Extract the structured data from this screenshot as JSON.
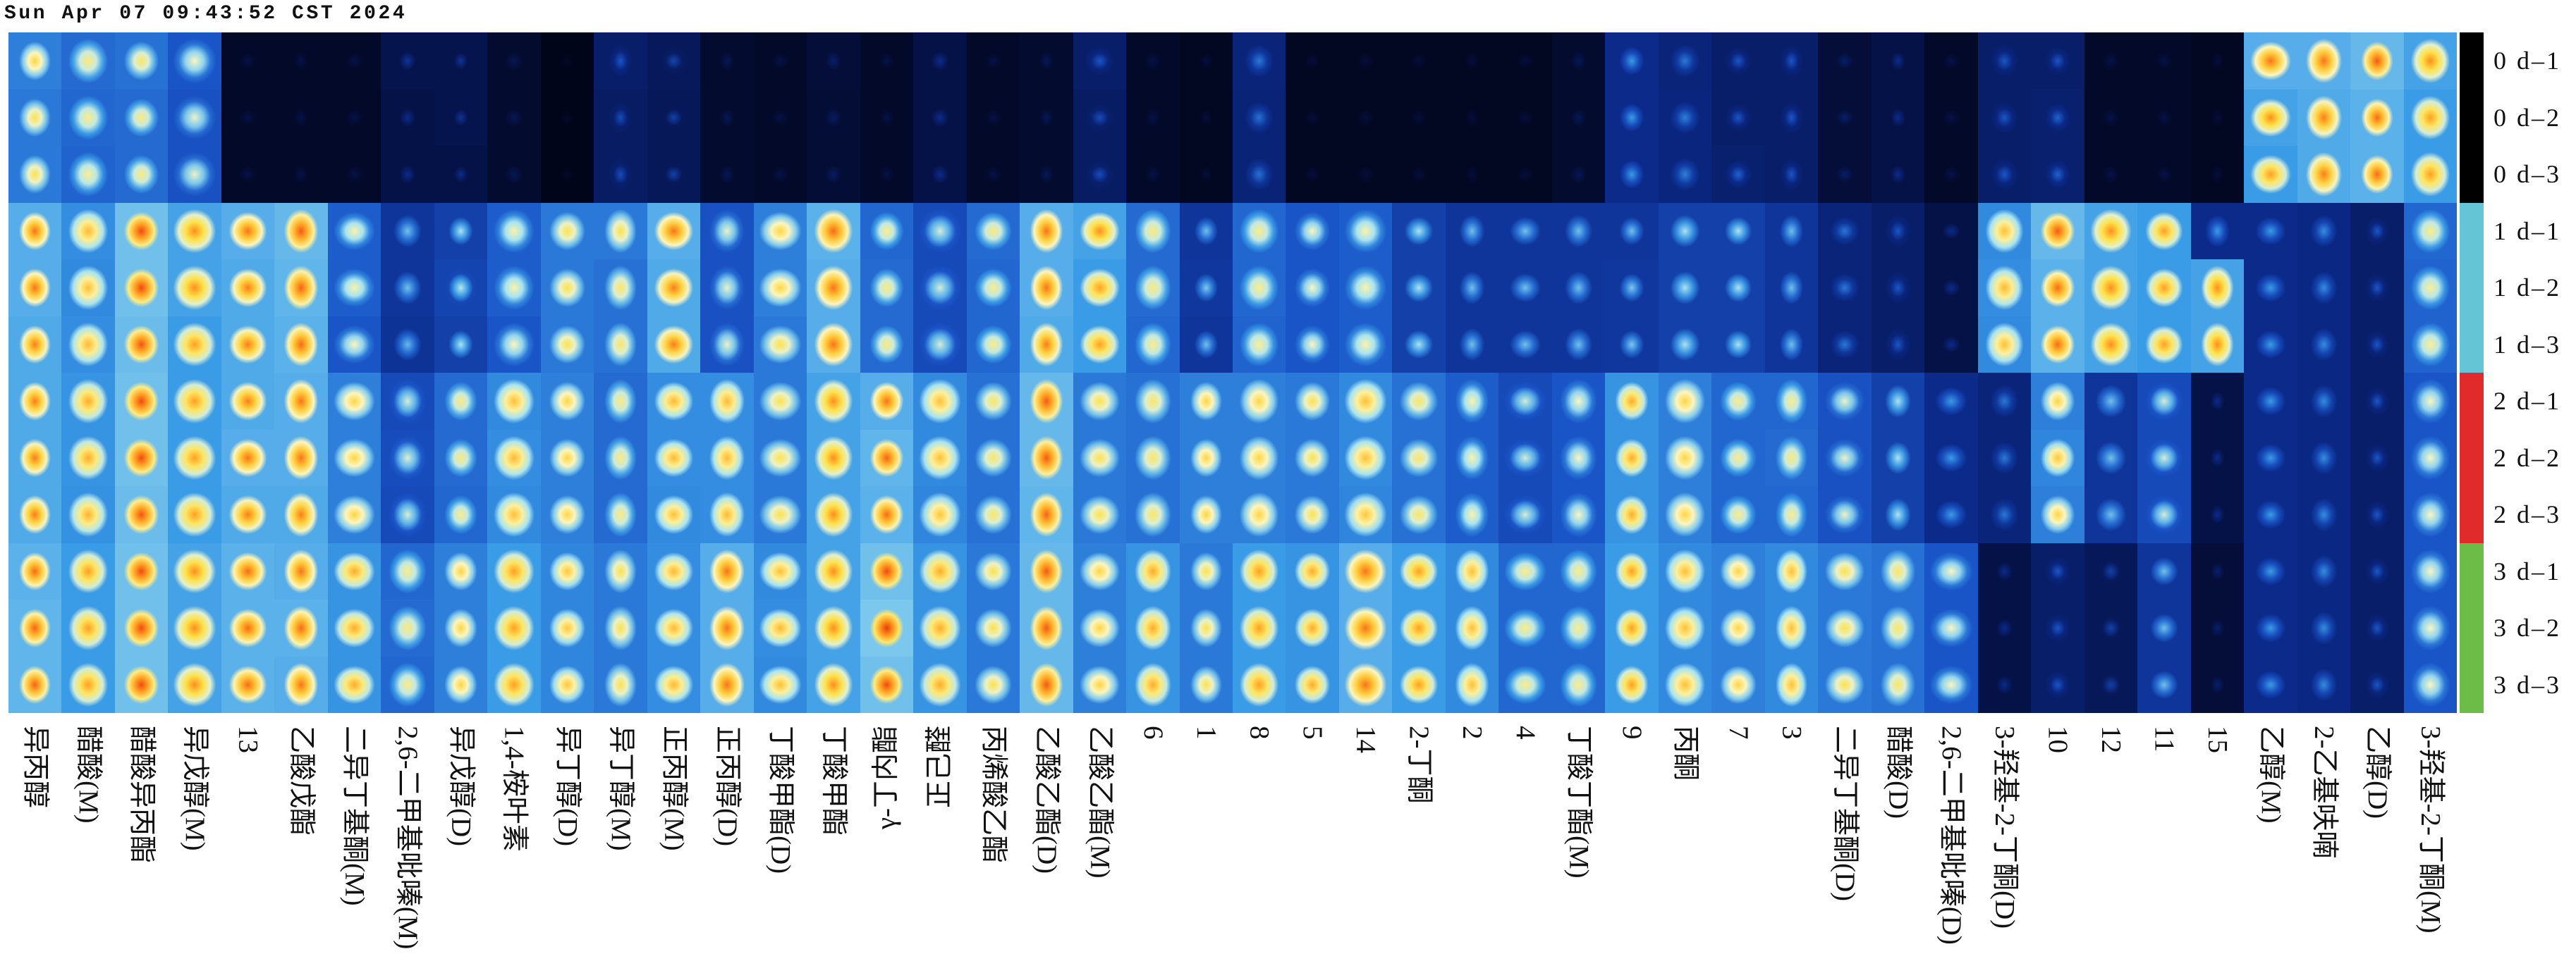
{
  "timestamp": "Sun Apr 07 09:43:52 CST 2024",
  "chart_data": {
    "type": "heatmap",
    "rows": [
      "0 d–1",
      "0 d–2",
      "0 d–3",
      "1 d–1",
      "1 d–2",
      "1 d–3",
      "2 d–1",
      "2 d–2",
      "2 d–3",
      "3 d–1",
      "3 d–2",
      "3 d–3"
    ],
    "columns": [
      "异丙醇",
      "醋酸(M)",
      "醋酸异丙酯",
      "异戊醇(M)",
      "13",
      "乙酸戊酯",
      "二异丁基酮(M)",
      "2,6-二甲基吡嗪(M)",
      "异戊醇(D)",
      "1,4-桉叶素",
      "异丁醇(D)",
      "异丁醇(M)",
      "正丙醇(M)",
      "正丙醇(D)",
      "丁酸甲酯(D)",
      "丁酸甲酯",
      "γ-丁内酯",
      "正己醛",
      "丙烯酸乙酯",
      "乙酸乙酯(D)",
      "乙酸乙酯(M)",
      "6",
      "1",
      "8",
      "5",
      "14",
      "2-丁酮",
      "2",
      "4",
      "丁酸丁酯(M)",
      "9",
      "丙酮",
      "7",
      "3",
      "二异丁基酮(D)",
      "醋酸(D)",
      "2,6-二甲基吡嗪(D)",
      "3-羟基-2-丁酮(D)",
      "10",
      "12",
      "11",
      "15",
      "乙醇(M)",
      "2-乙基呋喃",
      "乙醇(D)",
      "3-羟基-2-丁酮(M)"
    ],
    "values": [
      [
        0.72,
        0.66,
        0.68,
        0.6,
        0.1,
        0.1,
        0.1,
        0.22,
        0.22,
        0.12,
        0.05,
        0.3,
        0.26,
        0.12,
        0.1,
        0.15,
        0.1,
        0.2,
        0.1,
        0.12,
        0.3,
        0.1,
        0.08,
        0.35,
        0.08,
        0.08,
        0.08,
        0.08,
        0.08,
        0.12,
        0.4,
        0.35,
        0.3,
        0.3,
        0.15,
        0.2,
        0.1,
        0.3,
        0.3,
        0.1,
        0.1,
        0.08,
        0.85,
        0.85,
        0.88,
        0.82
      ],
      [
        0.7,
        0.65,
        0.66,
        0.58,
        0.1,
        0.1,
        0.1,
        0.2,
        0.22,
        0.12,
        0.05,
        0.28,
        0.25,
        0.12,
        0.1,
        0.14,
        0.1,
        0.2,
        0.1,
        0.12,
        0.28,
        0.1,
        0.08,
        0.34,
        0.08,
        0.08,
        0.08,
        0.08,
        0.08,
        0.12,
        0.4,
        0.36,
        0.3,
        0.3,
        0.15,
        0.2,
        0.1,
        0.3,
        0.32,
        0.1,
        0.1,
        0.08,
        0.82,
        0.84,
        0.86,
        0.8
      ],
      [
        0.7,
        0.64,
        0.66,
        0.58,
        0.1,
        0.1,
        0.1,
        0.2,
        0.2,
        0.12,
        0.05,
        0.28,
        0.25,
        0.12,
        0.1,
        0.14,
        0.1,
        0.2,
        0.1,
        0.12,
        0.28,
        0.1,
        0.08,
        0.34,
        0.08,
        0.08,
        0.08,
        0.08,
        0.08,
        0.12,
        0.4,
        0.36,
        0.32,
        0.3,
        0.15,
        0.2,
        0.1,
        0.3,
        0.32,
        0.1,
        0.1,
        0.08,
        0.8,
        0.84,
        0.86,
        0.8
      ],
      [
        0.85,
        0.76,
        0.9,
        0.82,
        0.85,
        0.88,
        0.62,
        0.45,
        0.5,
        0.62,
        0.7,
        0.7,
        0.85,
        0.58,
        0.72,
        0.86,
        0.65,
        0.55,
        0.66,
        0.85,
        0.82,
        0.66,
        0.45,
        0.65,
        0.6,
        0.62,
        0.5,
        0.45,
        0.45,
        0.45,
        0.45,
        0.5,
        0.5,
        0.45,
        0.35,
        0.3,
        0.2,
        0.75,
        0.88,
        0.82,
        0.8,
        0.4,
        0.4,
        0.38,
        0.3,
        0.65
      ],
      [
        0.85,
        0.75,
        0.9,
        0.82,
        0.84,
        0.87,
        0.62,
        0.45,
        0.52,
        0.62,
        0.7,
        0.68,
        0.84,
        0.58,
        0.72,
        0.85,
        0.66,
        0.55,
        0.65,
        0.85,
        0.8,
        0.66,
        0.46,
        0.65,
        0.6,
        0.62,
        0.5,
        0.45,
        0.45,
        0.45,
        0.46,
        0.5,
        0.5,
        0.45,
        0.35,
        0.3,
        0.2,
        0.76,
        0.86,
        0.82,
        0.8,
        0.82,
        0.4,
        0.38,
        0.3,
        0.64
      ],
      [
        0.84,
        0.76,
        0.89,
        0.8,
        0.84,
        0.86,
        0.6,
        0.44,
        0.5,
        0.6,
        0.7,
        0.68,
        0.84,
        0.58,
        0.7,
        0.85,
        0.66,
        0.55,
        0.65,
        0.84,
        0.8,
        0.65,
        0.45,
        0.64,
        0.6,
        0.62,
        0.5,
        0.45,
        0.45,
        0.45,
        0.46,
        0.5,
        0.5,
        0.45,
        0.35,
        0.3,
        0.2,
        0.75,
        0.86,
        0.82,
        0.8,
        0.82,
        0.4,
        0.38,
        0.3,
        0.64
      ],
      [
        0.84,
        0.78,
        0.9,
        0.8,
        0.84,
        0.85,
        0.72,
        0.55,
        0.66,
        0.75,
        0.72,
        0.66,
        0.76,
        0.76,
        0.7,
        0.82,
        0.85,
        0.75,
        0.68,
        0.88,
        0.7,
        0.68,
        0.72,
        0.72,
        0.7,
        0.75,
        0.68,
        0.62,
        0.55,
        0.6,
        0.78,
        0.72,
        0.65,
        0.65,
        0.58,
        0.5,
        0.4,
        0.35,
        0.72,
        0.45,
        0.55,
        0.2,
        0.4,
        0.38,
        0.3,
        0.6
      ],
      [
        0.84,
        0.78,
        0.9,
        0.8,
        0.85,
        0.85,
        0.72,
        0.56,
        0.66,
        0.76,
        0.72,
        0.66,
        0.76,
        0.76,
        0.7,
        0.82,
        0.87,
        0.75,
        0.68,
        0.88,
        0.7,
        0.68,
        0.72,
        0.72,
        0.7,
        0.75,
        0.68,
        0.62,
        0.55,
        0.6,
        0.78,
        0.72,
        0.65,
        0.66,
        0.58,
        0.5,
        0.4,
        0.35,
        0.74,
        0.45,
        0.55,
        0.2,
        0.4,
        0.38,
        0.3,
        0.6
      ],
      [
        0.84,
        0.77,
        0.89,
        0.8,
        0.84,
        0.84,
        0.72,
        0.55,
        0.65,
        0.75,
        0.72,
        0.66,
        0.75,
        0.76,
        0.7,
        0.82,
        0.86,
        0.74,
        0.68,
        0.87,
        0.7,
        0.68,
        0.72,
        0.72,
        0.7,
        0.74,
        0.68,
        0.62,
        0.55,
        0.6,
        0.78,
        0.72,
        0.65,
        0.65,
        0.58,
        0.5,
        0.4,
        0.35,
        0.72,
        0.45,
        0.55,
        0.2,
        0.4,
        0.38,
        0.3,
        0.6
      ],
      [
        0.86,
        0.8,
        0.9,
        0.82,
        0.86,
        0.85,
        0.78,
        0.65,
        0.72,
        0.8,
        0.74,
        0.7,
        0.76,
        0.85,
        0.75,
        0.82,
        0.9,
        0.78,
        0.7,
        0.88,
        0.72,
        0.78,
        0.7,
        0.8,
        0.78,
        0.85,
        0.8,
        0.75,
        0.65,
        0.65,
        0.8,
        0.75,
        0.72,
        0.75,
        0.7,
        0.68,
        0.6,
        0.2,
        0.3,
        0.25,
        0.45,
        0.15,
        0.4,
        0.38,
        0.3,
        0.6
      ],
      [
        0.87,
        0.8,
        0.9,
        0.82,
        0.86,
        0.86,
        0.78,
        0.66,
        0.72,
        0.8,
        0.74,
        0.7,
        0.76,
        0.85,
        0.76,
        0.82,
        0.92,
        0.78,
        0.7,
        0.88,
        0.72,
        0.78,
        0.7,
        0.8,
        0.78,
        0.85,
        0.8,
        0.75,
        0.65,
        0.65,
        0.8,
        0.75,
        0.72,
        0.75,
        0.7,
        0.68,
        0.6,
        0.2,
        0.3,
        0.25,
        0.45,
        0.15,
        0.4,
        0.38,
        0.3,
        0.6
      ],
      [
        0.87,
        0.8,
        0.9,
        0.82,
        0.86,
        0.85,
        0.78,
        0.65,
        0.72,
        0.8,
        0.74,
        0.7,
        0.76,
        0.85,
        0.75,
        0.82,
        0.9,
        0.78,
        0.7,
        0.88,
        0.72,
        0.78,
        0.7,
        0.8,
        0.78,
        0.85,
        0.8,
        0.75,
        0.65,
        0.65,
        0.8,
        0.75,
        0.72,
        0.75,
        0.7,
        0.68,
        0.6,
        0.2,
        0.3,
        0.25,
        0.45,
        0.15,
        0.4,
        0.38,
        0.3,
        0.6
      ]
    ],
    "row_colors": [
      "#000000",
      "#000000",
      "#000000",
      "#63c5d6",
      "#63c5d6",
      "#63c5d6",
      "#e12b2b",
      "#e12b2b",
      "#e12b2b",
      "#6cbd47",
      "#6cbd47",
      "#6cbd47"
    ],
    "colormap": [
      "#00000a",
      "#051247",
      "#0b2a8a",
      "#1a55c8",
      "#3a9be6",
      "#a8e4f2",
      "#fbf6c0",
      "#ffe24a",
      "#ffa020",
      "#f04a10",
      "#c00808"
    ]
  }
}
